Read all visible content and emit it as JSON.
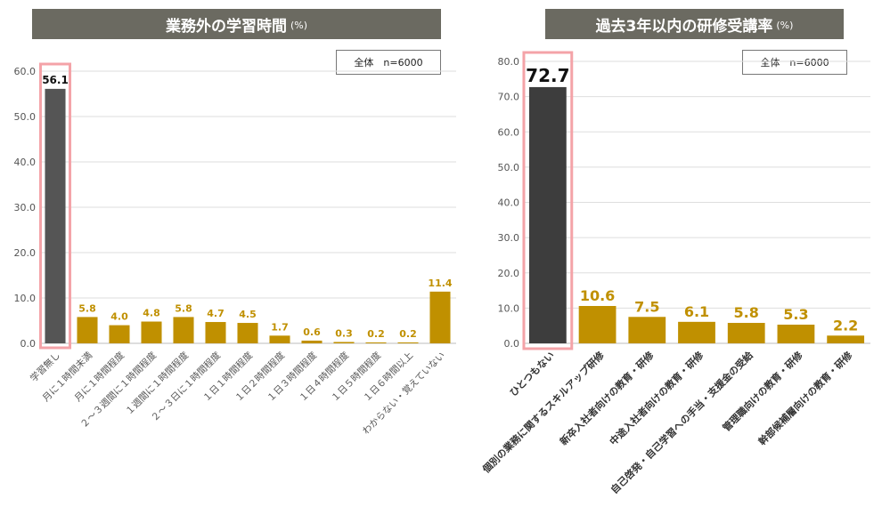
{
  "chart_data": [
    {
      "type": "bar",
      "title": "業務外の学習時間",
      "title_unit": "(%)",
      "legend": "全体　n=6000",
      "ylim": [
        0,
        60
      ],
      "yticks": [
        "0.0",
        "10.0",
        "20.0",
        "30.0",
        "40.0",
        "50.0",
        "60.0"
      ],
      "categories": [
        "学習無し",
        "月に１時間未満",
        "月に１時間程度",
        "２～３週間に１時間程度",
        "１週間に１時間程度",
        "２～３日に１時間程度",
        "１日１時間程度",
        "１日２時間程度",
        "１日３時間程度",
        "１日４時間程度",
        "１日５時間程度",
        "１日６時間以上",
        "わからない・覚えていない"
      ],
      "values": [
        56.1,
        5.8,
        4.0,
        4.8,
        5.8,
        4.7,
        4.5,
        1.7,
        0.6,
        0.3,
        0.2,
        0.2,
        11.4
      ],
      "value_labels": [
        "56.1",
        "5.8",
        "4.0",
        "4.8",
        "5.8",
        "4.7",
        "4.5",
        "1.7",
        "0.6",
        "0.3",
        "0.2",
        "0.2",
        "11.4"
      ],
      "highlight_index": 0,
      "colors": {
        "highlight": "#555555",
        "bar": "#c09000",
        "frame": "#f4a3a8"
      }
    },
    {
      "type": "bar",
      "title": "過去3年以内の研修受講率",
      "title_unit": "(%)",
      "legend": "全体　n=6000",
      "ylim": [
        0,
        80
      ],
      "yticks": [
        "0.0",
        "10.0",
        "20.0",
        "30.0",
        "40.0",
        "50.0",
        "60.0",
        "70.0",
        "80.0"
      ],
      "categories": [
        "ひとつもない",
        "個別の業務に関するスキルアップ研修",
        "新卒入社者向けの教育・研修",
        "中途入社者向けの教育・研修",
        "自己啓発・自己学習への手当・支援金の受給",
        "管理職向けの教育・研修",
        "幹部候補層向けの教育・研修"
      ],
      "values": [
        72.7,
        10.6,
        7.5,
        6.1,
        5.8,
        5.3,
        2.2
      ],
      "value_labels": [
        "72.7",
        "10.6",
        "7.5",
        "6.1",
        "5.8",
        "5.3",
        "2.2"
      ],
      "highlight_index": 0,
      "colors": {
        "highlight": "#3d3d3d",
        "bar": "#c09000",
        "frame": "#f4a3a8"
      }
    }
  ]
}
